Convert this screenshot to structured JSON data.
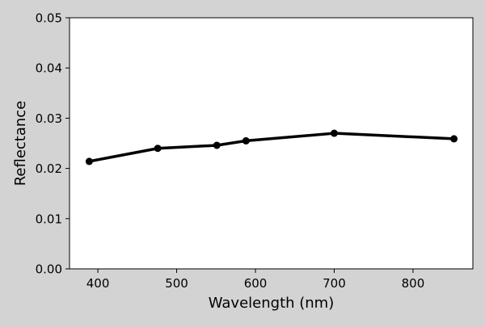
{
  "chart_data": {
    "type": "line",
    "xlabel": "Wavelength (nm)",
    "ylabel": "Reflectance",
    "xlim": [
      364,
      876
    ],
    "ylim": [
      0,
      0.05
    ],
    "x_ticks": [
      400,
      500,
      600,
      700,
      800
    ],
    "x_tick_labels": [
      "400",
      "500",
      "600",
      "700",
      "800"
    ],
    "y_ticks": [
      0.0,
      0.01,
      0.02,
      0.03,
      0.04,
      0.05
    ],
    "y_tick_labels": [
      "0.00",
      "0.01",
      "0.02",
      "0.03",
      "0.04",
      "0.05"
    ],
    "grid": false,
    "series": [
      {
        "x": [
          389,
          476,
          551,
          588,
          700,
          852
        ],
        "y": [
          0.0214,
          0.024,
          0.0246,
          0.0255,
          0.027,
          0.0259
        ],
        "color": "#000000",
        "marker": "circle"
      }
    ]
  }
}
